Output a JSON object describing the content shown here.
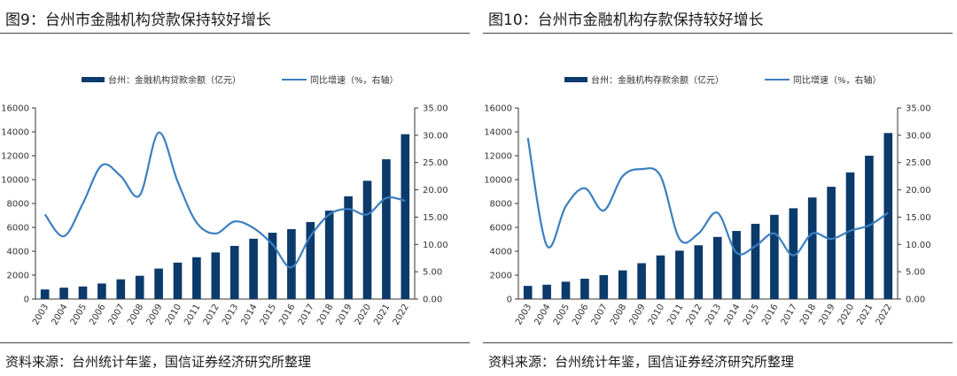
{
  "colors": {
    "bar": "#0b3a6b",
    "line": "#3b7fc0",
    "axis": "#333333",
    "text": "#333333"
  },
  "charts": [
    {
      "title": "图9：台州市金融机构贷款保持较好增长",
      "source": "资料来源：台州统计年鉴，国信证券经济研究所整理",
      "chart_data": {
        "type": "bar",
        "categories": [
          "2003",
          "2004",
          "2005",
          "2006",
          "2007",
          "2008",
          "2009",
          "2010",
          "2011",
          "2012",
          "2013",
          "2014",
          "2015",
          "2016",
          "2017",
          "2018",
          "2019",
          "2020",
          "2021",
          "2022"
        ],
        "series": [
          {
            "name": "台州：金融机构贷款余额（亿元）",
            "kind": "bar",
            "axis": "left",
            "values": [
              800,
              950,
              1050,
              1300,
              1650,
              1950,
              2550,
              3050,
              3500,
              3900,
              4450,
              5050,
              5550,
              5850,
              6450,
              7400,
              8600,
              9900,
              11700,
              13800
            ]
          },
          {
            "name": "同比增速（%，右轴）",
            "kind": "line",
            "axis": "right",
            "values": [
              15.5,
              11.5,
              17.5,
              24.5,
              22.5,
              19.0,
              30.5,
              21.5,
              14.0,
              12.0,
              14.2,
              13.0,
              10.0,
              5.8,
              11.5,
              15.5,
              16.5,
              15.5,
              18.5,
              18.0
            ]
          }
        ],
        "y_left": {
          "min": 0,
          "max": 16000,
          "ticks": [
            "0",
            "2000",
            "4000",
            "6000",
            "8000",
            "10000",
            "12000",
            "14000",
            "16000"
          ]
        },
        "y_right": {
          "min": 0,
          "max": 35,
          "ticks": [
            "0.00",
            "5.00",
            "10.00",
            "15.00",
            "20.00",
            "25.00",
            "30.00",
            "35.00"
          ]
        },
        "legend": [
          "台州：金融机构贷款余额（亿元）",
          "同比增速（%，右轴）"
        ]
      }
    },
    {
      "title": "图10：台州市金融机构存款保持较好增长",
      "source": "资料来源：台州统计年鉴，国信证券经济研究所整理",
      "chart_data": {
        "type": "bar",
        "categories": [
          "2003",
          "2004",
          "2005",
          "2006",
          "2007",
          "2008",
          "2009",
          "2010",
          "2011",
          "2012",
          "2013",
          "2014",
          "2015",
          "2016",
          "2017",
          "2018",
          "2019",
          "2020",
          "2021",
          "2022"
        ],
        "series": [
          {
            "name": "台州：金融机构存款余额（亿元）",
            "kind": "bar",
            "axis": "left",
            "values": [
              1100,
              1200,
              1450,
              1700,
              2000,
              2400,
              3000,
              3650,
              4050,
              4500,
              5200,
              5700,
              6300,
              7050,
              7600,
              8500,
              9400,
              10600,
              12000,
              13900
            ]
          },
          {
            "name": "同比增速（%，右轴）",
            "kind": "line",
            "axis": "right",
            "values": [
              29.5,
              9.8,
              17.0,
              20.3,
              16.2,
              22.5,
              23.8,
              22.5,
              11.0,
              12.0,
              15.8,
              8.5,
              9.7,
              12.0,
              8.0,
              12.0,
              11.0,
              12.5,
              13.5,
              15.8
            ]
          }
        ],
        "y_left": {
          "min": 0,
          "max": 16000,
          "ticks": [
            "0",
            "2000",
            "4000",
            "6000",
            "8000",
            "10000",
            "12000",
            "14000",
            "16000"
          ]
        },
        "y_right": {
          "min": 0,
          "max": 35,
          "ticks": [
            "0.00",
            "5.00",
            "10.00",
            "15.00",
            "20.00",
            "25.00",
            "30.00",
            "35.00"
          ]
        },
        "legend": [
          "台州：金融机构存款余额（亿元）",
          "同比增速（%，右轴）"
        ]
      }
    }
  ]
}
